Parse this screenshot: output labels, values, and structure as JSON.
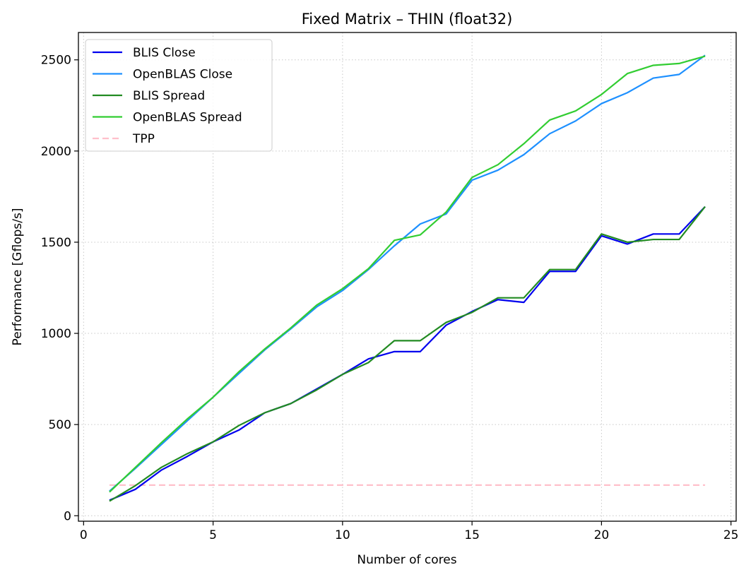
{
  "chart_data": {
    "type": "line",
    "title": "Fixed Matrix – THIN (float32)",
    "xlabel": "Number of cores",
    "ylabel": "Performance [Gflops/s]",
    "xlim": [
      -0.2,
      25.2
    ],
    "ylim": [
      -30,
      2650
    ],
    "xticks": [
      0,
      5,
      10,
      15,
      20,
      25
    ],
    "yticks": [
      0,
      500,
      1000,
      1500,
      2000,
      2500
    ],
    "grid": true,
    "grid_style": "dotted",
    "legend_position": "top-left",
    "x": [
      1,
      2,
      3,
      4,
      5,
      6,
      7,
      8,
      9,
      10,
      11,
      12,
      13,
      14,
      15,
      16,
      17,
      18,
      19,
      20,
      21,
      22,
      23,
      24
    ],
    "series": [
      {
        "name": "BLIS Close",
        "color": "#0000ee",
        "dash": "solid",
        "values": [
          85,
          145,
          250,
          325,
          405,
          470,
          565,
          615,
          695,
          775,
          860,
          900,
          900,
          1045,
          1120,
          1185,
          1170,
          1340,
          1340,
          1535,
          1490,
          1545,
          1545,
          1695
        ]
      },
      {
        "name": "OpenBLAS Close",
        "color": "#1e90ff",
        "dash": "solid",
        "values": [
          135,
          260,
          390,
          520,
          650,
          780,
          910,
          1025,
          1145,
          1235,
          1350,
          1480,
          1600,
          1655,
          1840,
          1895,
          1980,
          2095,
          2165,
          2260,
          2320,
          2400,
          2420,
          2525
        ]
      },
      {
        "name": "BLIS Spread",
        "color": "#228b22",
        "dash": "solid",
        "values": [
          80,
          165,
          265,
          340,
          405,
          495,
          565,
          615,
          690,
          775,
          840,
          960,
          960,
          1060,
          1115,
          1195,
          1195,
          1350,
          1350,
          1545,
          1500,
          1515,
          1515,
          1695
        ]
      },
      {
        "name": "OpenBLAS Spread",
        "color": "#32cd32",
        "dash": "solid",
        "values": [
          130,
          265,
          400,
          530,
          650,
          790,
          915,
          1030,
          1155,
          1245,
          1355,
          1510,
          1540,
          1665,
          1855,
          1925,
          2040,
          2170,
          2220,
          2310,
          2425,
          2470,
          2480,
          2520
        ]
      },
      {
        "name": "TPP",
        "color": "#ffc0cb",
        "dash": "dashed",
        "values": [
          168,
          168,
          168,
          168,
          168,
          168,
          168,
          168,
          168,
          168,
          168,
          168,
          168,
          168,
          168,
          168,
          168,
          168,
          168,
          168,
          168,
          168,
          168,
          168
        ]
      }
    ]
  }
}
